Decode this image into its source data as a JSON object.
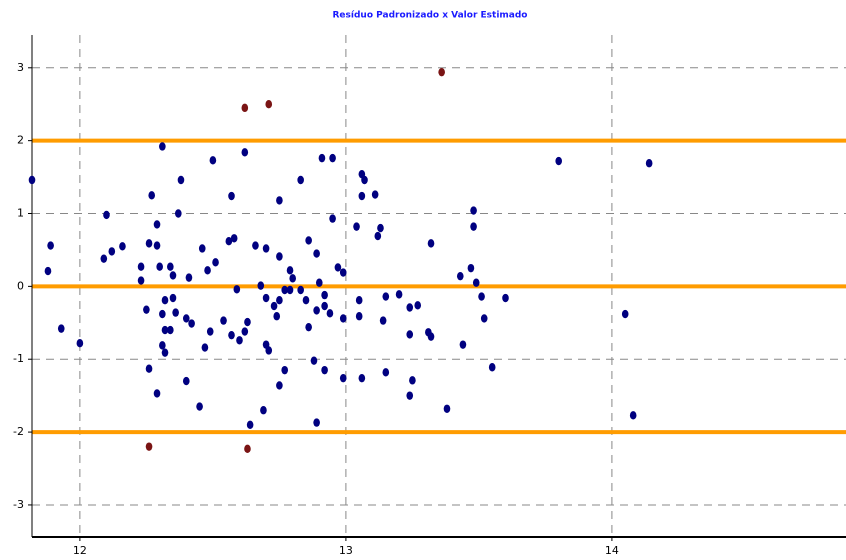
{
  "chart_data": {
    "type": "scatter",
    "title": "Resíduo Padronizado x Valor Estimado",
    "xlim": [
      11.82,
      14.88
    ],
    "ylim": [
      -3.44,
      3.45
    ],
    "xticks": [
      12,
      13,
      14
    ],
    "yticks": [
      -3,
      -2,
      -1,
      0,
      1,
      2,
      3
    ],
    "grid": true,
    "reference_lines": {
      "values": [
        -2,
        0,
        2
      ],
      "color": "#ff9c00"
    },
    "series": [
      {
        "color": "#000080",
        "x": [
          11.82,
          11.89,
          11.88,
          11.93,
          12.0,
          12.1,
          12.09,
          12.12,
          12.16,
          12.31,
          12.27,
          12.38,
          12.37,
          12.29,
          12.26,
          12.29,
          12.23,
          12.23,
          12.3,
          12.34,
          12.35,
          12.41,
          12.32,
          12.35,
          12.25,
          12.31,
          12.36,
          12.4,
          12.42,
          12.32,
          12.34,
          12.31,
          12.32,
          12.26,
          12.4,
          12.29,
          12.45,
          12.47,
          12.49,
          12.46,
          12.5,
          12.48,
          12.51,
          12.56,
          12.58,
          12.57,
          12.62,
          12.54,
          12.57,
          12.59,
          12.63,
          12.62,
          12.6,
          12.7,
          12.71,
          12.69,
          12.64,
          12.75,
          12.77,
          12.75,
          12.66,
          12.7,
          12.75,
          12.8,
          12.79,
          12.68,
          12.7,
          12.73,
          12.74,
          12.75,
          12.77,
          12.79,
          12.83,
          12.85,
          12.83,
          12.86,
          12.89,
          12.9,
          12.86,
          12.89,
          12.92,
          12.92,
          12.91,
          12.95,
          12.95,
          12.94,
          12.88,
          12.89,
          12.92,
          12.97,
          12.99,
          12.99,
          12.99,
          13.04,
          13.05,
          13.05,
          13.06,
          13.07,
          13.06,
          13.06,
          13.11,
          13.13,
          13.12,
          13.14,
          13.15,
          13.15,
          13.2,
          13.24,
          13.27,
          13.24,
          13.25,
          13.24,
          13.31,
          13.32,
          13.32,
          13.38,
          13.43,
          13.47,
          13.48,
          13.48,
          13.49,
          13.44,
          13.51,
          13.52,
          13.55,
          13.6,
          13.8,
          14.05,
          14.08,
          14.14
        ],
        "values": [
          1.46,
          0.56,
          0.21,
          -0.58,
          -0.78,
          0.98,
          0.38,
          0.48,
          0.55,
          1.92,
          1.25,
          1.46,
          1.0,
          0.85,
          0.59,
          0.56,
          0.27,
          0.08,
          0.27,
          0.27,
          0.15,
          0.12,
          -0.19,
          -0.16,
          -0.32,
          -0.38,
          -0.36,
          -0.44,
          -0.51,
          -0.6,
          -0.6,
          -0.81,
          -0.91,
          -1.13,
          -1.3,
          -1.47,
          -1.65,
          -0.84,
          -0.62,
          0.52,
          1.73,
          0.22,
          0.33,
          0.62,
          0.66,
          1.24,
          1.84,
          -0.47,
          -0.67,
          -0.04,
          -0.49,
          -0.62,
          -0.74,
          -0.8,
          -0.88,
          -1.7,
          -1.9,
          -1.36,
          -1.15,
          1.18,
          0.56,
          0.52,
          0.41,
          0.11,
          0.22,
          0.01,
          -0.16,
          -0.27,
          -0.41,
          -0.19,
          -0.05,
          -0.05,
          -0.05,
          -0.19,
          1.46,
          0.63,
          0.45,
          0.05,
          -0.56,
          -0.33,
          -0.27,
          -0.12,
          1.76,
          1.76,
          0.93,
          -0.37,
          -1.02,
          -1.87,
          -1.15,
          0.26,
          0.19,
          -0.44,
          -1.26,
          0.82,
          -0.19,
          -0.41,
          1.54,
          1.46,
          1.24,
          -1.26,
          1.26,
          0.8,
          0.69,
          -0.47,
          -0.14,
          -1.18,
          -0.11,
          -0.29,
          -0.26,
          -0.66,
          -1.29,
          -1.5,
          -0.63,
          -0.69,
          0.59,
          -1.68,
          0.14,
          0.25,
          0.82,
          1.04,
          0.05,
          -0.8,
          -0.14,
          -0.44,
          -1.11,
          -0.16,
          1.72,
          -0.38,
          -1.77,
          1.69
        ]
      },
      {
        "color": "#7a1414",
        "x": [
          13.36,
          12.62,
          12.71,
          12.26,
          12.63
        ],
        "values": [
          2.94,
          2.45,
          2.5,
          -2.2,
          -2.23
        ]
      }
    ]
  }
}
